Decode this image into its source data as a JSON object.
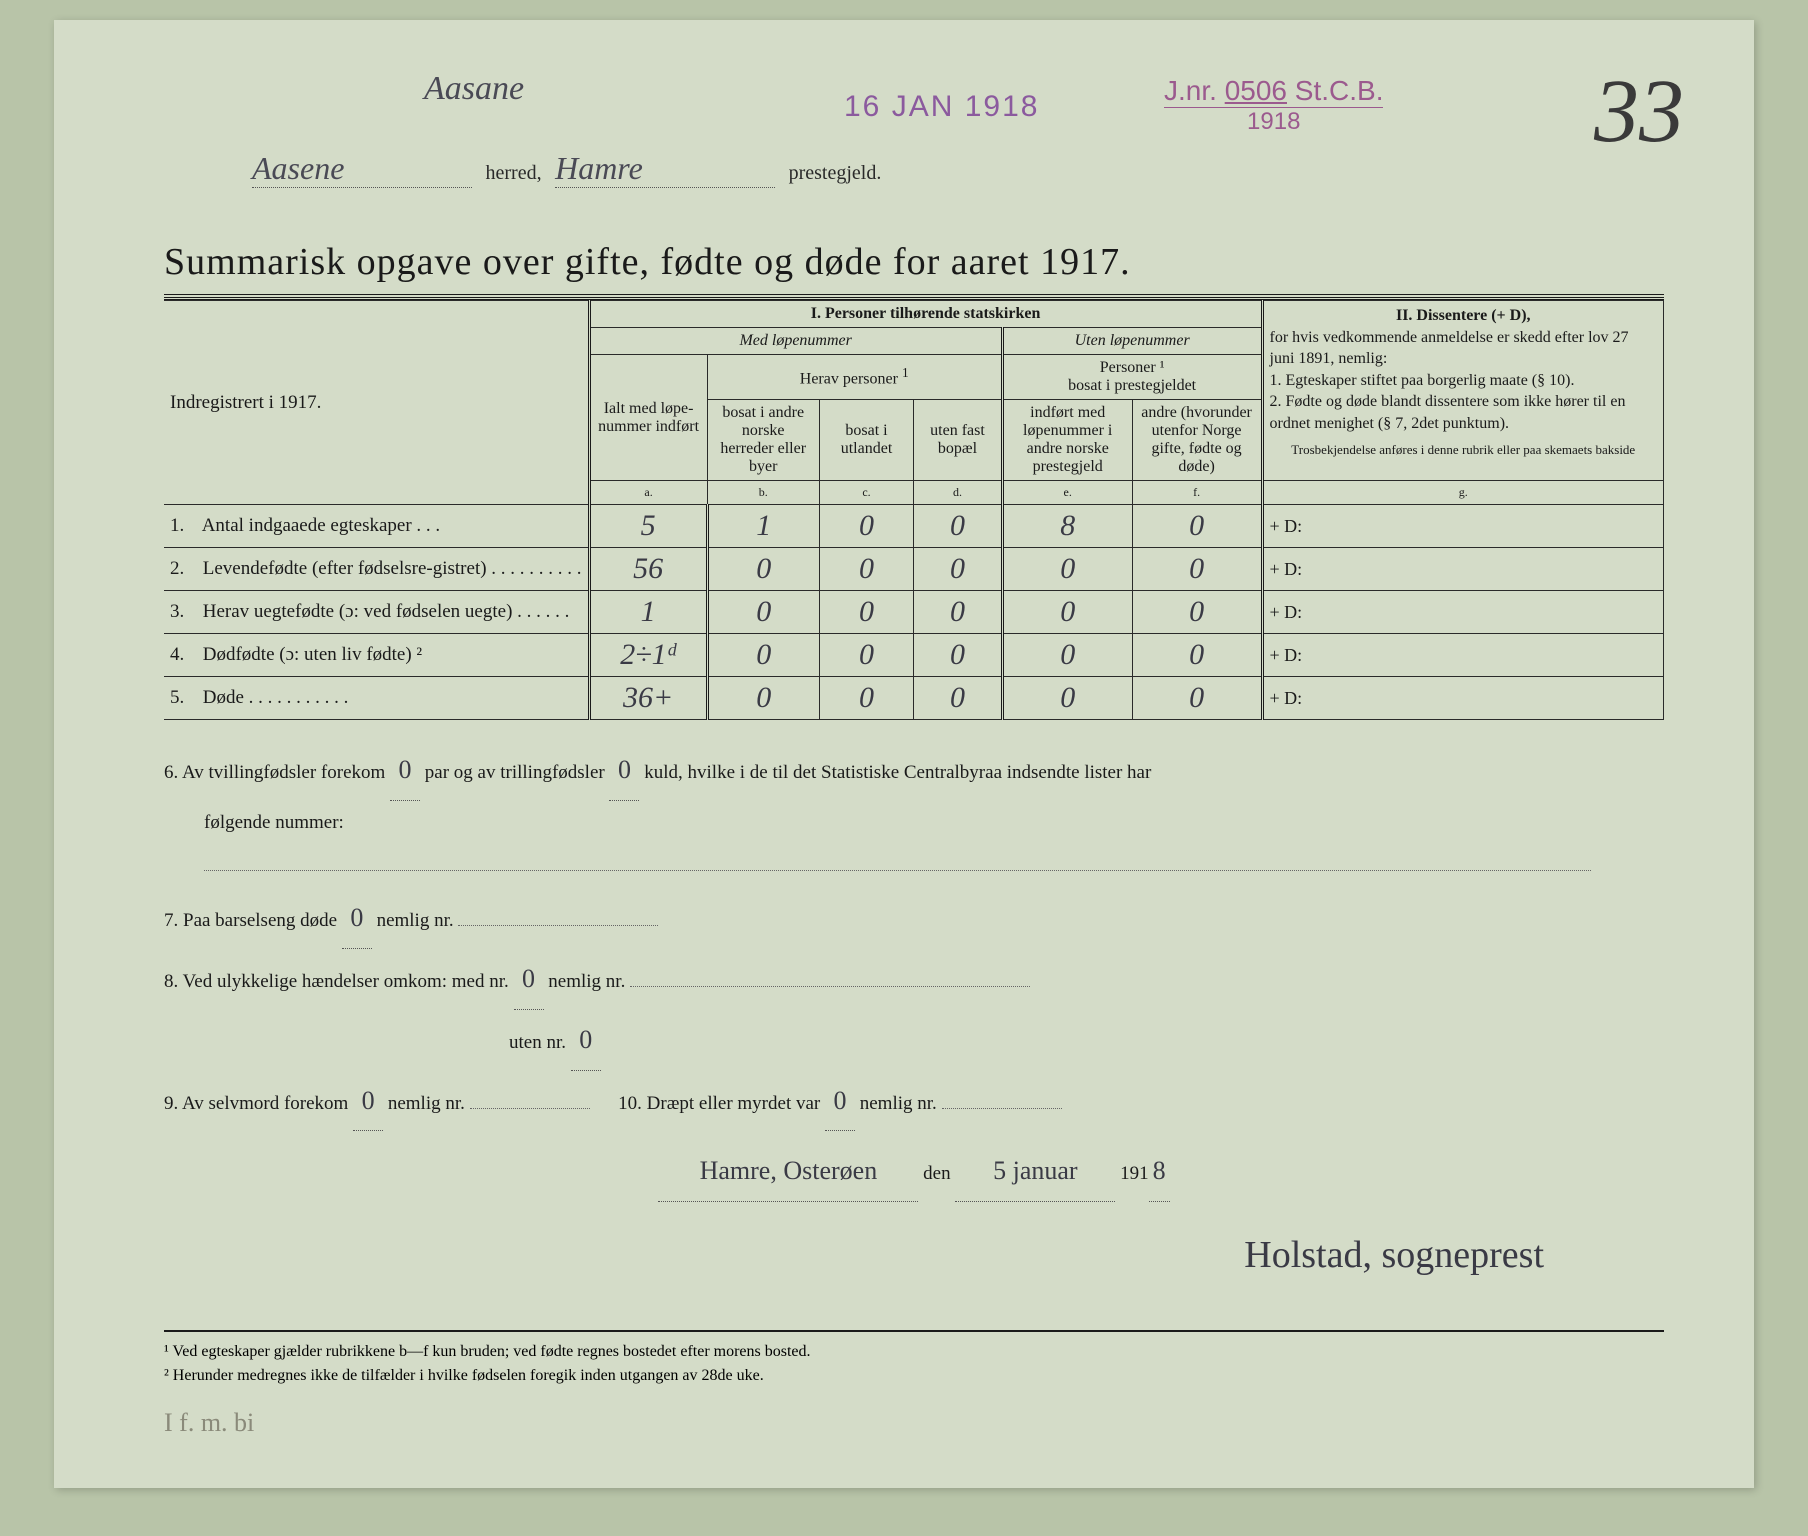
{
  "header": {
    "aasane": "Aasane",
    "date_stamp": "16 JAN 1918",
    "jnr_label": "J.nr.",
    "jnr_number": "0506",
    "jnr_suffix": "St.C.B.",
    "jnr_year": "1918",
    "big_number": "33",
    "herred_hw": "Aasene",
    "herred_label": "herred,",
    "prestegjeld_hw": "Hamre",
    "prestegjeld_label": "prestegjeld."
  },
  "title": "Summarisk opgave over gifte, fødte og døde for aaret 1917.",
  "columns": {
    "indreg": "Indregistrert i 1917.",
    "section1": "I.  Personer tilhørende statskirken",
    "med_lop": "Med løpenummer",
    "uten_lop": "Uten løpenummer",
    "herav": "Herav personer",
    "personer_bosat": "Personer ¹\nbosat i prestegjeldet",
    "a_label": "Ialt med løpe-nummer indført",
    "b_label": "bosat i andre norske herreder eller byer",
    "c_label": "bosat i utlandet",
    "d_label": "uten fast bopæl",
    "e_label": "indført med løpenummer i andre norske prestegjeld",
    "f_label": "andre (hvorunder utenfor Norge gifte, fødte og døde)",
    "a": "a.",
    "b": "b.",
    "c": "c.",
    "d": "d.",
    "e": "e.",
    "f": "f.",
    "g": "g.",
    "section2_title": "II.  Dissentere (+ D),",
    "section2_body": "for hvis vedkommende anmeldelse er skedd efter lov 27 juni 1891, nemlig:\n1. Egteskaper stiftet paa borgerlig maate (§ 10).\n2. Fødte og døde blandt dissentere som ikke hører til en ordnet menighet (§ 7, 2det punktum).",
    "section2_foot": "Trosbekjendelse anføres i denne rubrik eller paa skemaets bakside"
  },
  "rows": [
    {
      "num": "1.",
      "label": "Antal indgaaede egteskaper . . .",
      "a": "5",
      "b": "1",
      "c": "0",
      "d": "0",
      "e": "8",
      "f": "0",
      "g": "+ D:"
    },
    {
      "num": "2.",
      "label": "Levendefødte (efter fødselsre-gistret) . . . . . . . . . .",
      "a": "56",
      "b": "0",
      "c": "0",
      "d": "0",
      "e": "0",
      "f": "0",
      "g": "+ D:"
    },
    {
      "num": "3.",
      "label": "Herav uegtefødte (ɔ: ved fødselen uegte) . . . . . .",
      "a": "1",
      "b": "0",
      "c": "0",
      "d": "0",
      "e": "0",
      "f": "0",
      "g": "+ D:"
    },
    {
      "num": "4.",
      "label": "Dødfødte (ɔ: uten liv fødte) ²",
      "a": "2÷1ᵈ",
      "b": "0",
      "c": "0",
      "d": "0",
      "e": "0",
      "f": "0",
      "g": "+ D:"
    },
    {
      "num": "5.",
      "label": "Døde . . . . . . . . . . .",
      "a": "36+",
      "b": "0",
      "c": "0",
      "d": "0",
      "e": "0",
      "f": "0",
      "g": "+ D:"
    }
  ],
  "below": {
    "line6a": "6.   Av tvillingfødsler forekom",
    "line6_twin": "0",
    "line6b": "par og av trillingfødsler",
    "line6_trip": "0",
    "line6c": "kuld, hvilke i de til det Statistiske Centralbyraa indsendte lister har",
    "line6d": "følgende nummer:",
    "line7a": "7.   Paa barselseng døde",
    "line7_val": "0",
    "line7b": "nemlig nr.",
    "line8a": "8.   Ved ulykkelige hændelser omkom:  med nr.",
    "line8_med": "0",
    "line8b": "nemlig nr.",
    "line8c": "uten nr.",
    "line8_uten": "0",
    "line9a": "9.   Av selvmord forekom",
    "line9_val": "0",
    "line9b": "nemlig nr.",
    "line10a": "10.   Dræpt eller myrdet var",
    "line10_val": "0",
    "line10b": "nemlig nr."
  },
  "sig": {
    "place": "Hamre, Osterøen",
    "den": "den",
    "date": "5 januar",
    "year_prefix": "191",
    "year_hw": "8",
    "signature": "Holstad, sogneprest"
  },
  "footnotes": {
    "f1": "¹ Ved egteskaper gjælder rubrikkene b—f kun bruden; ved fødte regnes bostedet efter morens bosted.",
    "f2": "² Herunder medregnes ikke de tilfælder i hvilke fødselen foregik inden utgangen av 28de uke."
  },
  "faint_note": "I f. m. bi"
}
